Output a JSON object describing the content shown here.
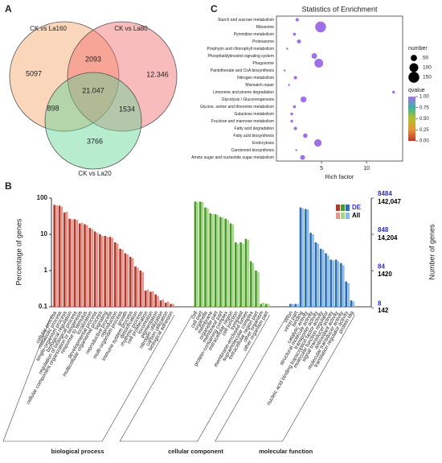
{
  "panel_labels": [
    "A",
    "B",
    "C"
  ],
  "chart_data": [
    {
      "type": "venn",
      "sets": [
        {
          "name": "CK vs La160",
          "color": "#f4a468"
        },
        {
          "name": "CK vs La80",
          "color": "#f26b6b"
        },
        {
          "name": "CK vs La20",
          "color": "#5fd494"
        }
      ],
      "values": [
        5097,
        2093,
        12346,
        21047,
        898,
        1534,
        3766
      ],
      "value_labels": [
        "5097",
        "2093",
        "12.346",
        "21.047",
        "898",
        "1534",
        "3766"
      ]
    },
    {
      "type": "bar",
      "log_scale": true,
      "ylabel": "Percentage of genes",
      "y2label": "Number of genes",
      "ylim": [
        0.1,
        100
      ],
      "yticks": [
        0.1,
        1,
        10,
        100
      ],
      "series": [
        {
          "name": "DE",
          "color": "#3030c8",
          "colors": [
            "#b03a2e",
            "#4a9a2a",
            "#2e6db4"
          ]
        },
        {
          "name": "All",
          "color": "#000000",
          "colors": [
            "#e8968c",
            "#a6d88a",
            "#8cbbe8"
          ]
        }
      ],
      "y2axes": [
        {
          "color": "#3030c8",
          "ylim": [
            8.484,
            8484
          ],
          "ticks": [
            8,
            84,
            848,
            8484
          ]
        },
        {
          "color": "#000000",
          "ylim": [
            142.047,
            142047
          ],
          "ticks": [
            142,
            1420,
            {
              "value": 14204,
              "label": "14,204"
            },
            {
              "value": 142047,
              "label": "142,047"
            }
          ]
        }
      ],
      "groups": [
        {
          "name": "biological process",
          "categories": [
            "cellular process",
            "metabolic process",
            "single-organism process",
            "biological regulation",
            "regulation of biological process",
            "cellular component organization or biogenesis",
            "response to stimulus",
            "localization",
            "developmental process",
            "multicellular organismal process",
            "signaling",
            "reproductive process",
            "reproduction",
            "multi-organism process",
            "growth",
            "immune system process",
            "detoxification",
            "rhythmic process",
            "cell proliferation",
            "locomotion",
            "pigmentation",
            "nitrogen utilization",
            "carbon utilization",
            "biological adhesion"
          ],
          "values": [
            [
              65,
              62,
              40,
              27,
              26,
              20,
              19,
              15,
              12,
              10,
              9,
              8.5,
              6,
              4,
              3,
              2.4,
              1.3,
              1,
              0.28,
              0.26,
              0.22,
              0.15,
              0.13,
              0.12
            ],
            [
              63,
              58,
              42,
              26,
              25,
              21,
              18,
              14,
              11,
              9,
              8.5,
              8,
              5.5,
              3.8,
              2.8,
              2.2,
              1.2,
              0.9,
              0.3,
              0.27,
              0.2,
              0.16,
              0.14,
              0.12
            ]
          ]
        },
        {
          "name": "cellular component",
          "categories": [
            "cell",
            "cell part",
            "organelle",
            "membrane",
            "organelle part",
            "membrane part",
            "protein-containing complex",
            "extracellular region",
            "cell junction",
            "symplast",
            "membrane-enclosed lumen",
            "supramolecular complex",
            "extracellular region part",
            "other organism",
            "other organism part"
          ],
          "values": [
            [
              80,
              80,
              55,
              38,
              36,
              30,
              27,
              20,
              6,
              6,
              7.5,
              1.8,
              1,
              0.12,
              0.12
            ],
            [
              78,
              78,
              52,
              36,
              34,
              29,
              25,
              19,
              5.5,
              5.5,
              7,
              1.6,
              0.9,
              0.13,
              0.12
            ]
          ]
        },
        {
          "name": "molecular function",
          "categories": [
            "virion",
            "virion part",
            "binding",
            "catalytic activity",
            "structural molecule activity",
            "transporter activity",
            "nucleic acid binding transcription factor activity",
            "molecular function regulator",
            "signal transducer activity",
            "antioxidant activity",
            "molecular transducer activity",
            "translation regulator activity",
            "protein tag"
          ],
          "values": [
            [
              0.12,
              0.12,
              55,
              50,
              11,
              6,
              4,
              3,
              2,
              2,
              1.6,
              0.5,
              0.15
            ],
            [
              0.12,
              0.12,
              52,
              48,
              10,
              5.5,
              3.8,
              2.6,
              1.9,
              1.8,
              1.4,
              0.45,
              0.14
            ]
          ]
        }
      ]
    },
    {
      "type": "bubble",
      "title": "Statistics of Enrichment",
      "xlabel": "Rich factor",
      "xlim": [
        0,
        14
      ],
      "xticks": [
        5,
        10
      ],
      "categories": [
        "Starch and sucrose metabolism",
        "Ribosome",
        "Pyrimidine metabolism",
        "Proteasome",
        "Porphyrin and chlorophyll metabolism",
        "Phosphatidylinositol signaling system",
        "Phagosome",
        "Pantothenate and CoA biosynthesis",
        "Nitrogen metabolism",
        "Mismatch repair",
        "Limonene and pinene degradation",
        "Glycolysis / Gluconeogenesis",
        "Glycine, serine and threonine metabolism",
        "Galactose metabolism",
        "Fructose and mannose metabolism",
        "Fatty acid degradation",
        "Fatty acid biosynthesis",
        "Endocytosis",
        "Carotenoid biosynthesis",
        "Amino sugar and nucleotide sugar metabolism"
      ],
      "values": [
        2.3,
        4.9,
        2.0,
        2.5,
        1.2,
        4.2,
        4.7,
        0.9,
        2.1,
        1.4,
        13.0,
        3.0,
        2.0,
        1.7,
        1.7,
        2.1,
        3.2,
        4.6,
        2.2,
        2.9
      ],
      "sizes": [
        15,
        150,
        12,
        20,
        5,
        40,
        100,
        5,
        15,
        5,
        10,
        45,
        12,
        10,
        10,
        15,
        25,
        70,
        5,
        30
      ],
      "qvalues": [
        1,
        1,
        0.98,
        1,
        0.97,
        1,
        1,
        0.96,
        1,
        0.97,
        1,
        1,
        0.98,
        1,
        1,
        0.99,
        1,
        1,
        0.97,
        1
      ],
      "size_legend": {
        "title": "number",
        "values": [
          50,
          100,
          150
        ]
      },
      "color_legend": {
        "title": "qvalue",
        "clim": [
          0,
          1
        ],
        "colors": [
          "#c0392b",
          "#e69138",
          "#b5c22a",
          "#3cb5a0",
          "#a070e8"
        ],
        "ticks": [
          {
            "value": 0,
            "label": "0.00"
          },
          {
            "value": 0.25,
            "label": "0.25"
          },
          {
            "value": 0.5,
            "label": "0.50"
          },
          {
            "value": 0.75,
            "label": "0.75"
          },
          {
            "value": 1,
            "label": "1.00"
          }
        ]
      }
    }
  ]
}
